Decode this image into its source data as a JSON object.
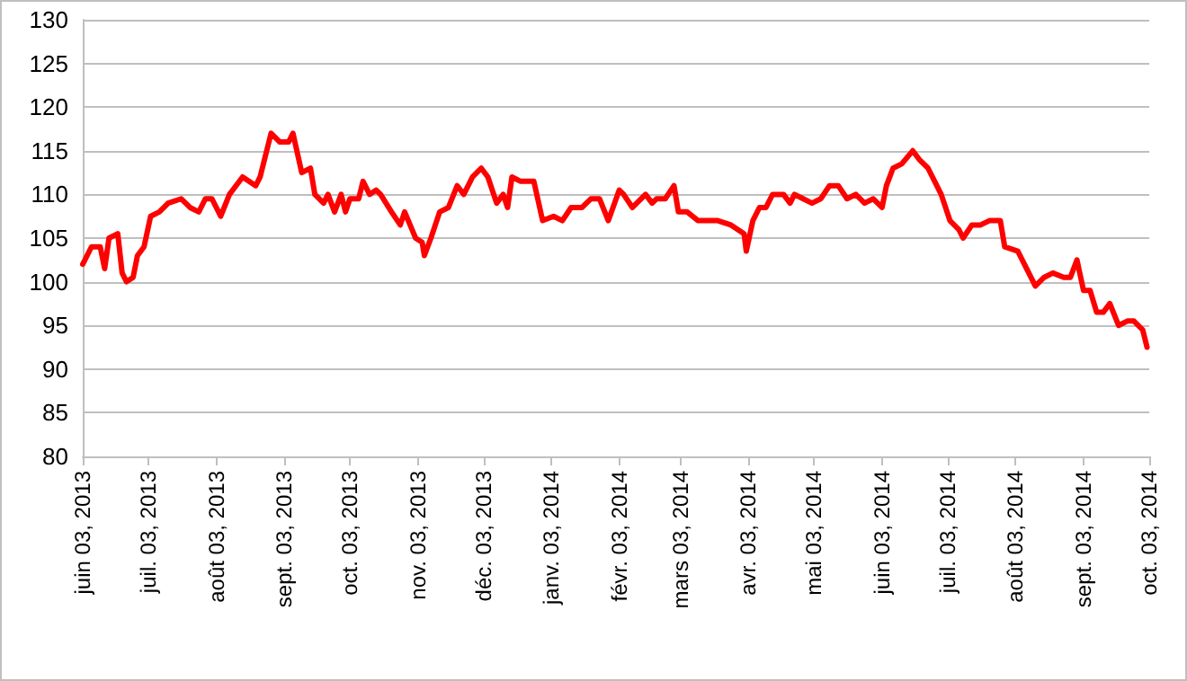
{
  "chart_data": {
    "type": "line",
    "marker": "none",
    "line_style": "solid",
    "grid": "y",
    "xlim": [
      "2013-06-03",
      "2014-10-03"
    ],
    "xticks": [
      {
        "value": "2013-06-03",
        "label": "juin 03, 2013"
      },
      {
        "value": "2013-07-03",
        "label": "juil. 03, 2013"
      },
      {
        "value": "2013-08-03",
        "label": "août 03, 2013"
      },
      {
        "value": "2013-09-03",
        "label": "sept. 03, 2013"
      },
      {
        "value": "2013-10-03",
        "label": "oct. 03, 2013"
      },
      {
        "value": "2013-11-03",
        "label": "nov. 03, 2013"
      },
      {
        "value": "2013-12-03",
        "label": "déc. 03, 2013"
      },
      {
        "value": "2014-01-03",
        "label": "janv. 03, 2014"
      },
      {
        "value": "2014-02-03",
        "label": "févr. 03, 2014"
      },
      {
        "value": "2014-03-03",
        "label": "mars 03, 2014"
      },
      {
        "value": "2014-04-03",
        "label": "avr. 03, 2014"
      },
      {
        "value": "2014-05-03",
        "label": "mai 03, 2014"
      },
      {
        "value": "2014-06-03",
        "label": "juin 03, 2014"
      },
      {
        "value": "2014-07-03",
        "label": "juil. 03, 2014"
      },
      {
        "value": "2014-08-03",
        "label": "août 03, 2014"
      },
      {
        "value": "2014-09-03",
        "label": "sept. 03, 2014"
      },
      {
        "value": "2014-10-03",
        "label": "oct. 03, 2014"
      }
    ],
    "ylim": [
      80,
      130
    ],
    "yticks": [
      80,
      85,
      90,
      95,
      100,
      105,
      110,
      115,
      120,
      125,
      130
    ],
    "x": [
      "2013-06-03",
      "2013-06-07",
      "2013-06-11",
      "2013-06-13",
      "2013-06-15",
      "2013-06-19",
      "2013-06-21",
      "2013-06-23",
      "2013-06-26",
      "2013-06-28",
      "2013-07-01",
      "2013-07-04",
      "2013-07-08",
      "2013-07-12",
      "2013-07-18",
      "2013-07-22",
      "2013-07-26",
      "2013-07-29",
      "2013-08-01",
      "2013-08-05",
      "2013-08-09",
      "2013-08-15",
      "2013-08-21",
      "2013-08-23",
      "2013-08-28",
      "2013-09-01",
      "2013-09-05",
      "2013-09-07",
      "2013-09-11",
      "2013-09-15",
      "2013-09-17",
      "2013-09-21",
      "2013-09-23",
      "2013-09-26",
      "2013-09-29",
      "2013-10-01",
      "2013-10-03",
      "2013-10-07",
      "2013-10-09",
      "2013-10-12",
      "2013-10-15",
      "2013-10-17",
      "2013-10-22",
      "2013-10-26",
      "2013-10-28",
      "2013-11-02",
      "2013-11-05",
      "2013-11-06",
      "2013-11-09",
      "2013-11-13",
      "2013-11-17",
      "2013-11-21",
      "2013-11-24",
      "2013-11-28",
      "2013-12-02",
      "2013-12-05",
      "2013-12-09",
      "2013-12-12",
      "2013-12-14",
      "2013-12-16",
      "2013-12-20",
      "2013-12-26",
      "2013-12-30",
      "2014-01-04",
      "2014-01-08",
      "2014-01-12",
      "2014-01-17",
      "2014-01-21",
      "2014-01-25",
      "2014-01-29",
      "2014-02-03",
      "2014-02-05",
      "2014-02-09",
      "2014-02-15",
      "2014-02-18",
      "2014-02-20",
      "2014-02-24",
      "2014-02-28",
      "2014-03-02",
      "2014-03-06",
      "2014-03-11",
      "2014-03-15",
      "2014-03-20",
      "2014-03-26",
      "2014-04-01",
      "2014-04-02",
      "2014-04-05",
      "2014-04-08",
      "2014-04-11",
      "2014-04-14",
      "2014-04-19",
      "2014-04-22",
      "2014-04-24",
      "2014-04-28",
      "2014-05-02",
      "2014-05-06",
      "2014-05-10",
      "2014-05-14",
      "2014-05-18",
      "2014-05-22",
      "2014-05-26",
      "2014-05-30",
      "2014-06-03",
      "2014-06-05",
      "2014-06-08",
      "2014-06-12",
      "2014-06-17",
      "2014-06-20",
      "2014-06-24",
      "2014-06-28",
      "2014-06-30",
      "2014-07-04",
      "2014-07-08",
      "2014-07-10",
      "2014-07-14",
      "2014-07-18",
      "2014-07-22",
      "2014-07-27",
      "2014-07-29",
      "2014-08-04",
      "2014-08-07",
      "2014-08-12",
      "2014-08-16",
      "2014-08-20",
      "2014-08-25",
      "2014-08-28",
      "2014-08-31",
      "2014-09-03",
      "2014-09-06",
      "2014-09-09",
      "2014-09-12",
      "2014-09-15",
      "2014-09-19",
      "2014-09-23",
      "2014-09-26",
      "2014-09-30",
      "2014-10-02"
    ],
    "series": [
      {
        "color": "#ff0000",
        "values": [
          102,
          104,
          104,
          101.5,
          105,
          105.5,
          101,
          100,
          100.5,
          103,
          104,
          107.5,
          108,
          109,
          109.5,
          108.5,
          108,
          109.5,
          109.5,
          107.5,
          110,
          112,
          111,
          112,
          117,
          116,
          116,
          117,
          112.5,
          113,
          110,
          109,
          110,
          108,
          110,
          108,
          109.5,
          109.5,
          111.5,
          110,
          110.5,
          110,
          108,
          106.5,
          108,
          105,
          104.5,
          103,
          105,
          108,
          108.5,
          111,
          110,
          112,
          113,
          112,
          109,
          110,
          108.5,
          112,
          111.5,
          111.5,
          107,
          107.5,
          107,
          108.5,
          108.5,
          109.5,
          109.5,
          107,
          110.5,
          110,
          108.5,
          110,
          109,
          109.5,
          109.5,
          111,
          108,
          108,
          107,
          107,
          107,
          106.5,
          105.5,
          103.5,
          107,
          108.5,
          108.5,
          110,
          110,
          109,
          110,
          109.5,
          109,
          109.5,
          111,
          111,
          109.5,
          110,
          109,
          109.5,
          108.5,
          111,
          113,
          113.5,
          115,
          114,
          113,
          111,
          110,
          107,
          106,
          105,
          106.5,
          106.5,
          107,
          107,
          104,
          103.5,
          102,
          99.5,
          100.5,
          101,
          100.5,
          100.5,
          102.5,
          99,
          99,
          96.5,
          96.5,
          97.5,
          95,
          95.5,
          95.5,
          94.5,
          92.5
        ]
      }
    ]
  }
}
